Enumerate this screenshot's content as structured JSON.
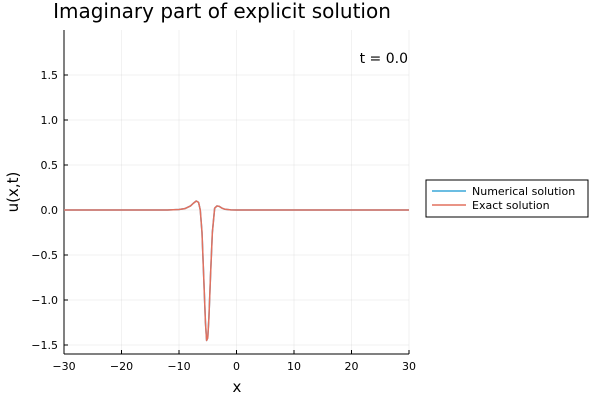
{
  "chart_data": {
    "type": "line",
    "title": "Imaginary part of explicit solution",
    "xlabel": "x",
    "ylabel": "u(x,t)",
    "annotation": "t = 0.0",
    "xlim": [
      -30,
      30
    ],
    "ylim": [
      -1.6,
      2.0
    ],
    "xticks": [
      -30,
      -20,
      -10,
      0,
      10,
      20,
      30
    ],
    "yticks": [
      -1.5,
      -1.0,
      -0.5,
      0.0,
      0.5,
      1.0,
      1.5
    ],
    "xtick_labels": [
      "−30",
      "−20",
      "−10",
      "0",
      "10",
      "20",
      "30"
    ],
    "ytick_labels": [
      "−1.5",
      "−1.0",
      "−0.5",
      "0.0",
      "0.5",
      "1.0",
      "1.5"
    ],
    "grid": true,
    "legend_position": "outside-right",
    "series": [
      {
        "name": "Numerical solution",
        "color": "#3aa7d9",
        "x": [
          -30,
          -12,
          -10,
          -9,
          -8,
          -7.5,
          -7,
          -6.6,
          -6.3,
          -6.0,
          -5.7,
          -5.4,
          -5.2,
          -5.0,
          -4.8,
          -4.5,
          -4.2,
          -3.8,
          -3.4,
          -3.0,
          -2.5,
          -2.0,
          -1.0,
          0,
          30
        ],
        "y": [
          0,
          0,
          0.005,
          0.015,
          0.045,
          0.075,
          0.1,
          0.085,
          0.0,
          -0.25,
          -0.75,
          -1.25,
          -1.45,
          -1.42,
          -1.2,
          -0.7,
          -0.25,
          0.02,
          0.045,
          0.04,
          0.02,
          0.008,
          0.001,
          0,
          0
        ]
      },
      {
        "name": "Exact solution",
        "color": "#e2705e",
        "x": [
          -30,
          -12,
          -10,
          -9,
          -8,
          -7.5,
          -7,
          -6.6,
          -6.3,
          -6.0,
          -5.7,
          -5.4,
          -5.2,
          -5.0,
          -4.8,
          -4.5,
          -4.2,
          -3.8,
          -3.4,
          -3.0,
          -2.5,
          -2.0,
          -1.0,
          0,
          30
        ],
        "y": [
          0,
          0,
          0.005,
          0.015,
          0.045,
          0.075,
          0.1,
          0.085,
          0.0,
          -0.25,
          -0.75,
          -1.25,
          -1.45,
          -1.42,
          -1.2,
          -0.7,
          -0.25,
          0.02,
          0.045,
          0.04,
          0.02,
          0.008,
          0.001,
          0,
          0
        ]
      }
    ]
  }
}
